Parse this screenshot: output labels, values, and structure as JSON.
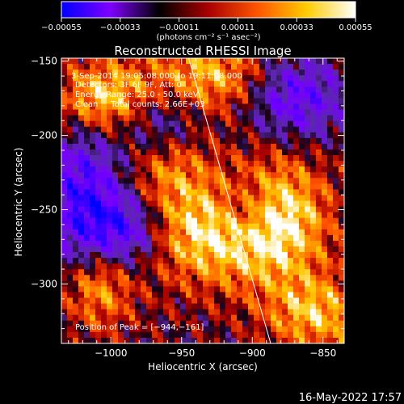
{
  "chart_data": {
    "type": "heatmap",
    "title": "Reconstructed RHESSI Image",
    "xlabel": "Heliocentric X (arcsec)",
    "ylabel": "Heliocentric Y (arcsec)",
    "xlim": [
      -1035,
      -835
    ],
    "ylim": [
      -340,
      -148
    ],
    "xticks": [
      -1000,
      -950,
      -900,
      -850
    ],
    "xtick_labels": [
      "−1000",
      "−950",
      "−900",
      "−850"
    ],
    "yticks": [
      -300,
      -250,
      -200,
      -150
    ],
    "ytick_labels": [
      "−300",
      "−250",
      "−200",
      "−150"
    ],
    "colorbar": {
      "range": [
        -0.00055,
        0.00055
      ],
      "ticks": [
        -0.00055,
        -0.00033,
        -0.00011,
        0.00011,
        0.00033,
        0.00055
      ],
      "tick_labels": [
        "−0.00055",
        "−0.00033",
        "−0.00011",
        "0.00011",
        "0.00033",
        "0.00055"
      ],
      "units_label": "(photons cm⁻² s⁻¹ asec⁻²)",
      "colors": [
        "#0000ff",
        "#7f00ff",
        "#000000",
        "#aa0000",
        "#ff5500",
        "#ffcc00",
        "#ffffff"
      ]
    },
    "annotations": {
      "time_range": "3-Sep-2014 19:05:08.000 to 19:11:08.000",
      "detectors": "Detectors: 3F 6F 9F, Att: 0",
      "energy_range": "Energy Range: 25.0 - 50.0 keV",
      "clean_info": "Clean     Total counts: 2.66E+03",
      "peak_position": "Position of Peak = [−944,−161]"
    },
    "peak": [
      -944,
      -161
    ],
    "limb_line": {
      "x": [
        -945,
        -887
      ],
      "y": [
        -148,
        -340
      ]
    },
    "hot_regions": [
      {
        "x": -1005,
        "y": -175,
        "amp": 1.0,
        "sx": 25,
        "sy": 18
      },
      {
        "x": -1010,
        "y": -300,
        "amp": 0.9,
        "sx": 18,
        "sy": 22
      },
      {
        "x": -930,
        "y": -265,
        "amp": 1.0,
        "sx": 35,
        "sy": 25
      },
      {
        "x": -880,
        "y": -255,
        "amp": 0.9,
        "sx": 25,
        "sy": 30
      },
      {
        "x": -855,
        "y": -320,
        "amp": 0.8,
        "sx": 25,
        "sy": 18
      },
      {
        "x": -930,
        "y": -160,
        "amp": 0.8,
        "sx": 30,
        "sy": 18
      },
      {
        "x": -960,
        "y": -215,
        "amp": 0.7,
        "sx": 20,
        "sy": 20
      }
    ],
    "cold_regions": [
      {
        "x": -1020,
        "y": -245,
        "amp": 0.9,
        "sx": 20,
        "sy": 40
      },
      {
        "x": -965,
        "y": -195,
        "amp": 0.8,
        "sx": 20,
        "sy": 18
      },
      {
        "x": -990,
        "y": -265,
        "amp": 0.9,
        "sx": 20,
        "sy": 18
      },
      {
        "x": -870,
        "y": -175,
        "amp": 0.8,
        "sx": 25,
        "sy": 20
      },
      {
        "x": -905,
        "y": -250,
        "amp": 0.7,
        "sx": 15,
        "sy": 15
      }
    ]
  },
  "footer": {
    "timestamp": "16-May-2022 17:57"
  }
}
